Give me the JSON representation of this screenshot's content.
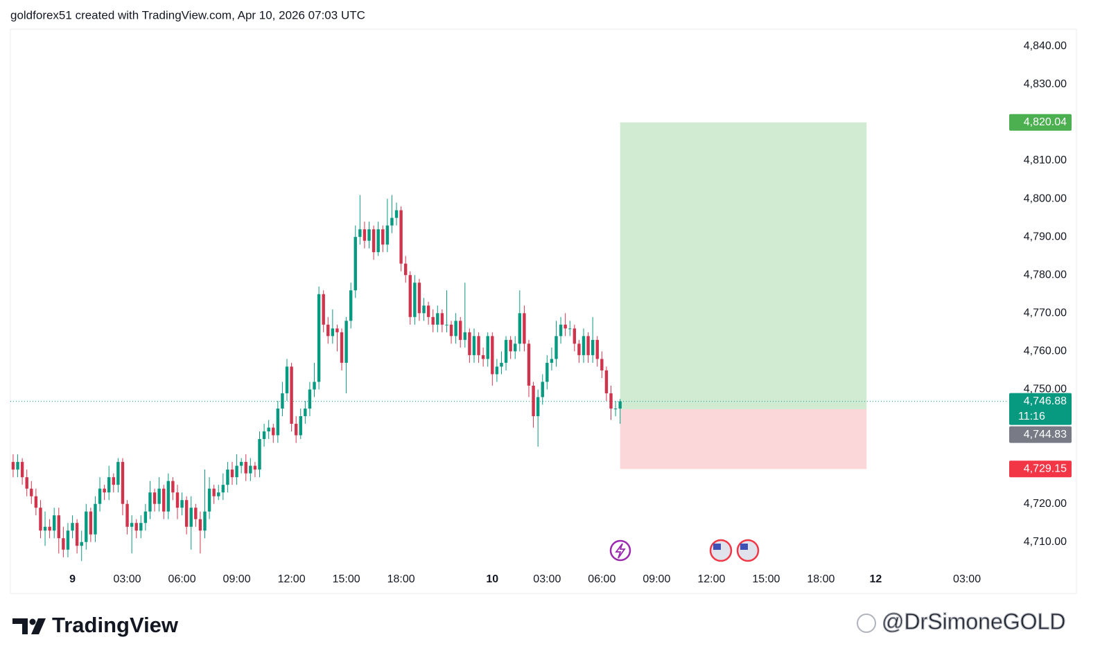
{
  "header": {
    "text": "goldforex51 created with TradingView.com, Apr 10, 2026 07:03 UTC"
  },
  "chart_data": {
    "type": "candlestick",
    "up_color": "#089981",
    "down_color": "#d0344c",
    "ylim": [
      4703.6,
      4844.5
    ],
    "yticks": [
      {
        "value": 4710,
        "label": "4,710.00"
      },
      {
        "value": 4720,
        "label": "4,720.00"
      },
      {
        "value": 4750,
        "label": "4,750.00"
      },
      {
        "value": 4760,
        "label": "4,760.00"
      },
      {
        "value": 4770,
        "label": "4,770.00"
      },
      {
        "value": 4780,
        "label": "4,780.00"
      },
      {
        "value": 4790,
        "label": "4,790.00"
      },
      {
        "value": 4800,
        "label": "4,800.00"
      },
      {
        "value": 4810,
        "label": "4,810.00"
      },
      {
        "value": 4830,
        "label": "4,830.00"
      },
      {
        "value": 4840,
        "label": "4,840.00"
      }
    ],
    "xlim": [
      -0.6,
      218.1
    ],
    "xticks": [
      {
        "value": 13,
        "label": "9"
      },
      {
        "value": 25,
        "label": "03:00"
      },
      {
        "value": 37,
        "label": "06:00"
      },
      {
        "value": 49,
        "label": "09:00"
      },
      {
        "value": 61,
        "label": "12:00"
      },
      {
        "value": 73,
        "label": "15:00"
      },
      {
        "value": 85,
        "label": "18:00"
      },
      {
        "value": 105,
        "label": "10"
      },
      {
        "value": 117,
        "label": "03:00"
      },
      {
        "value": 129,
        "label": "06:00"
      },
      {
        "value": 141,
        "label": "09:00"
      },
      {
        "value": 153,
        "label": "12:00"
      },
      {
        "value": 165,
        "label": "15:00"
      },
      {
        "value": 177,
        "label": "18:00"
      },
      {
        "value": 189,
        "label": "12"
      },
      {
        "value": 209,
        "label": "03:00"
      }
    ],
    "open": [
      4731,
      4729,
      4731,
      4727,
      4724,
      4722,
      4719,
      4713,
      4714,
      4713,
      4717,
      4711,
      4708,
      4713,
      4715,
      4709,
      4710,
      4718,
      4712,
      4720,
      4724,
      4723,
      4727,
      4725,
      4731,
      4720,
      4714,
      4715,
      4713,
      4715,
      4718,
      4723,
      4720,
      4724,
      4718,
      4726,
      4723,
      4719,
      4721,
      4714,
      4719,
      4716,
      4713,
      4718,
      4724,
      4722,
      4723,
      4725,
      4729,
      4727,
      4730,
      4731,
      4728,
      4730,
      4729,
      4737,
      4739,
      4740,
      4738,
      4745,
      4749,
      4756,
      4741,
      4738,
      4743,
      4745,
      4750,
      4752,
      4775,
      4767,
      4764,
      4766,
      4765,
      4757,
      4768,
      4776,
      4790,
      4792,
      4789,
      4792,
      4786,
      4792,
      4788,
      4793,
      4795,
      4797,
      4783,
      4780,
      4769,
      4778,
      4770,
      4772,
      4769,
      4767,
      4770,
      4767,
      4767,
      4764,
      4768,
      4763,
      4765,
      4759,
      4764,
      4759,
      4758,
      4764,
      4754,
      4756,
      4757,
      4763,
      4760,
      4762,
      4770,
      4762,
      4751,
      4743,
      4748,
      4752,
      4757,
      4758,
      4764,
      4767,
      4766,
      4766,
      4762,
      4759,
      4764,
      4759,
      4763,
      4758,
      4755,
      4749,
      4745,
      4745
    ],
    "high": [
      4733,
      4733,
      4732,
      4729,
      4726,
      4724,
      4721,
      4718,
      4716,
      4719,
      4719,
      4714,
      4715,
      4717,
      4716,
      4713,
      4720,
      4719,
      4722,
      4727,
      4725,
      4730,
      4728,
      4732,
      4732,
      4721,
      4717,
      4716,
      4717,
      4720,
      4726,
      4724,
      4727,
      4725,
      4728,
      4727,
      4725,
      4723,
      4722,
      4722,
      4720,
      4718,
      4729,
      4727,
      4725,
      4725,
      4728,
      4731,
      4731,
      4733,
      4732,
      4733,
      4732,
      4731,
      4739,
      4741,
      4742,
      4741,
      4747,
      4752,
      4758,
      4757,
      4743,
      4745,
      4747,
      4752,
      4757,
      4777,
      4776,
      4769,
      4771,
      4767,
      4766,
      4769,
      4778,
      4793,
      4801,
      4794,
      4794,
      4793,
      4794,
      4793,
      4800,
      4801,
      4799,
      4798,
      4785,
      4781,
      4780,
      4779,
      4774,
      4773,
      4771,
      4772,
      4771,
      4776,
      4768,
      4770,
      4769,
      4778,
      4766,
      4766,
      4765,
      4761,
      4765,
      4765,
      4758,
      4760,
      4764,
      4764,
      4764,
      4776,
      4772,
      4763,
      4752,
      4750,
      4754,
      4759,
      4761,
      4768,
      4769,
      4770,
      4768,
      4767,
      4763,
      4766,
      4765,
      4769,
      4764,
      4760,
      4756,
      4751,
      4747,
      4747.5
    ],
    "low": [
      4727,
      4727,
      4725,
      4722,
      4720,
      4717,
      4711,
      4709,
      4711,
      4711,
      4707,
      4706,
      4706,
      4711,
      4707,
      4705,
      4708,
      4710,
      4710,
      4718,
      4721,
      4721,
      4723,
      4723,
      4717,
      4712,
      4707,
      4711,
      4711,
      4713,
      4716,
      4718,
      4718,
      4716,
      4716,
      4721,
      4716,
      4717,
      4712,
      4708,
      4714,
      4707,
      4711,
      4716,
      4720,
      4721,
      4721,
      4723,
      4725,
      4725,
      4728,
      4726,
      4726,
      4727,
      4727,
      4735,
      4737,
      4736,
      4736,
      4743,
      4747,
      4739,
      4736,
      4737,
      4741,
      4743,
      4748,
      4750,
      4765,
      4762,
      4762,
      4760,
      4755,
      4749,
      4766,
      4774,
      4788,
      4787,
      4787,
      4784,
      4785,
      4786,
      4786,
      4791,
      4793,
      4781,
      4778,
      4767,
      4767,
      4768,
      4768,
      4767,
      4765,
      4765,
      4765,
      4765,
      4762,
      4762,
      4761,
      4761,
      4757,
      4757,
      4757,
      4756,
      4756,
      4751,
      4752,
      4754,
      4755,
      4758,
      4758,
      4760,
      4760,
      4748,
      4740,
      4735,
      4746,
      4750,
      4755,
      4756,
      4762,
      4764,
      4764,
      4760,
      4757,
      4757,
      4757,
      4757,
      4756,
      4753,
      4747,
      4742,
      4743,
      4741
    ],
    "close": [
      4729,
      4731,
      4727,
      4724,
      4722,
      4719,
      4713,
      4714,
      4713,
      4717,
      4711,
      4708,
      4713,
      4715,
      4709,
      4710,
      4718,
      4712,
      4720,
      4724,
      4723,
      4727,
      4725,
      4731,
      4720,
      4714,
      4715,
      4713,
      4715,
      4718,
      4723,
      4720,
      4724,
      4718,
      4726,
      4723,
      4719,
      4721,
      4714,
      4719,
      4716,
      4713,
      4718,
      4724,
      4722,
      4723,
      4725,
      4729,
      4727,
      4730,
      4731,
      4728,
      4730,
      4729,
      4737,
      4739,
      4740,
      4738,
      4745,
      4749,
      4756,
      4741,
      4738,
      4743,
      4745,
      4750,
      4752,
      4775,
      4767,
      4764,
      4766,
      4765,
      4757,
      4768,
      4776,
      4790,
      4792,
      4789,
      4792,
      4786,
      4792,
      4788,
      4793,
      4795,
      4797,
      4783,
      4780,
      4769,
      4778,
      4770,
      4772,
      4769,
      4767,
      4770,
      4767,
      4767,
      4764,
      4768,
      4763,
      4765,
      4759,
      4764,
      4759,
      4758,
      4764,
      4754,
      4756,
      4757,
      4763,
      4760,
      4762,
      4770,
      4762,
      4751,
      4743,
      4748,
      4752,
      4757,
      4758,
      4764,
      4767,
      4766,
      4766,
      4762,
      4759,
      4764,
      4759,
      4763,
      4758,
      4755,
      4749,
      4745,
      4745,
      4746.88
    ],
    "position": {
      "target": 4820.04,
      "entry": 4744.83,
      "stop": 4729.15
    },
    "price_levels": {
      "values": [
        4820.04,
        4746.88,
        4744.83,
        4729.15
      ],
      "value_labels": [
        "4,820.04",
        "4,746.88",
        "4,744.83",
        "4,729.15"
      ],
      "colors": [
        "#4caf50",
        "#089981",
        "#787b86",
        "#f23645"
      ]
    },
    "countdown": "11:16"
  },
  "footer": {
    "logo": "TradingView",
    "watermark": "@DrSimoneGOLD"
  }
}
